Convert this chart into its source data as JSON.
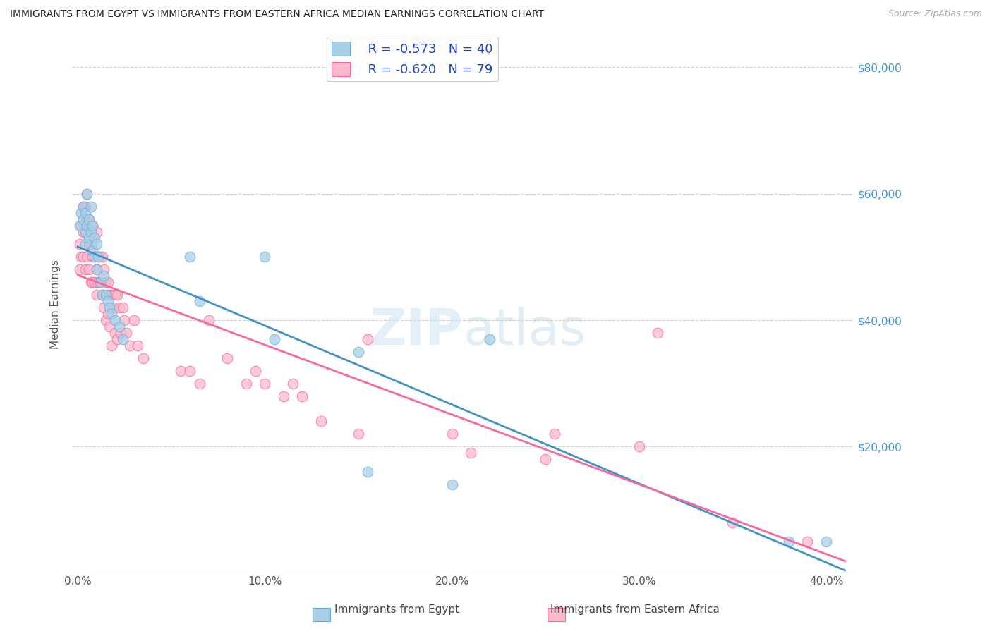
{
  "title": "IMMIGRANTS FROM EGYPT VS IMMIGRANTS FROM EASTERN AFRICA MEDIAN EARNINGS CORRELATION CHART",
  "source": "Source: ZipAtlas.com",
  "ylabel": "Median Earnings",
  "xlabel_ticks": [
    "0.0%",
    "10.0%",
    "20.0%",
    "30.0%",
    "40.0%"
  ],
  "xlabel_vals": [
    0.0,
    0.1,
    0.2,
    0.3,
    0.4
  ],
  "ylabel_ticks": [
    0,
    20000,
    40000,
    60000,
    80000
  ],
  "ylabel_labels": [
    "",
    "$20,000",
    "$40,000",
    "$60,000",
    "$80,000"
  ],
  "xlim": [
    -0.003,
    0.415
  ],
  "ylim": [
    0,
    85000
  ],
  "egypt_color": "#a8cfe8",
  "egypt_edge": "#6baed6",
  "eastern_color": "#fcb9cb",
  "eastern_edge": "#f768a1",
  "line_egypt": "#4292c6",
  "line_eastern": "#f768a1",
  "watermark_text": "ZIPatlas",
  "legend_R_egypt": "R = -0.573",
  "legend_N_egypt": "N = 40",
  "legend_R_eastern": "R = -0.620",
  "legend_N_eastern": "N = 79",
  "egypt_x": [
    0.001,
    0.002,
    0.003,
    0.003,
    0.004,
    0.004,
    0.004,
    0.005,
    0.005,
    0.006,
    0.006,
    0.007,
    0.007,
    0.008,
    0.008,
    0.009,
    0.009,
    0.01,
    0.01,
    0.011,
    0.012,
    0.013,
    0.014,
    0.015,
    0.016,
    0.017,
    0.018,
    0.02,
    0.022,
    0.024,
    0.06,
    0.065,
    0.1,
    0.105,
    0.15,
    0.155,
    0.2,
    0.22,
    0.38,
    0.4
  ],
  "egypt_y": [
    55000,
    57000,
    58000,
    56000,
    57000,
    54000,
    52000,
    60000,
    55000,
    56000,
    53000,
    58000,
    54000,
    55000,
    51000,
    50000,
    53000,
    52000,
    48000,
    50000,
    46000,
    44000,
    47000,
    44000,
    43000,
    42000,
    41000,
    40000,
    39000,
    37000,
    50000,
    43000,
    50000,
    37000,
    35000,
    16000,
    14000,
    37000,
    5000,
    5000
  ],
  "eastern_x": [
    0.001,
    0.001,
    0.002,
    0.002,
    0.003,
    0.003,
    0.003,
    0.004,
    0.004,
    0.004,
    0.005,
    0.005,
    0.005,
    0.006,
    0.006,
    0.006,
    0.007,
    0.007,
    0.007,
    0.008,
    0.008,
    0.008,
    0.009,
    0.009,
    0.01,
    0.01,
    0.01,
    0.011,
    0.011,
    0.012,
    0.012,
    0.013,
    0.013,
    0.014,
    0.014,
    0.015,
    0.015,
    0.016,
    0.016,
    0.017,
    0.017,
    0.018,
    0.018,
    0.019,
    0.02,
    0.02,
    0.021,
    0.021,
    0.022,
    0.023,
    0.024,
    0.025,
    0.026,
    0.028,
    0.03,
    0.032,
    0.035,
    0.055,
    0.06,
    0.065,
    0.07,
    0.08,
    0.09,
    0.095,
    0.1,
    0.11,
    0.115,
    0.12,
    0.13,
    0.15,
    0.155,
    0.2,
    0.21,
    0.25,
    0.255,
    0.3,
    0.31,
    0.35,
    0.39
  ],
  "eastern_y": [
    52000,
    48000,
    55000,
    50000,
    58000,
    54000,
    50000,
    58000,
    54000,
    48000,
    60000,
    56000,
    50000,
    56000,
    52000,
    48000,
    55000,
    52000,
    46000,
    55000,
    50000,
    46000,
    50000,
    46000,
    54000,
    48000,
    44000,
    50000,
    46000,
    50000,
    46000,
    50000,
    44000,
    48000,
    42000,
    46000,
    40000,
    46000,
    41000,
    44000,
    39000,
    44000,
    36000,
    42000,
    44000,
    38000,
    44000,
    37000,
    42000,
    38000,
    42000,
    40000,
    38000,
    36000,
    40000,
    36000,
    34000,
    32000,
    32000,
    30000,
    40000,
    34000,
    30000,
    32000,
    30000,
    28000,
    30000,
    28000,
    24000,
    22000,
    37000,
    22000,
    19000,
    18000,
    22000,
    20000,
    38000,
    8000,
    5000
  ]
}
